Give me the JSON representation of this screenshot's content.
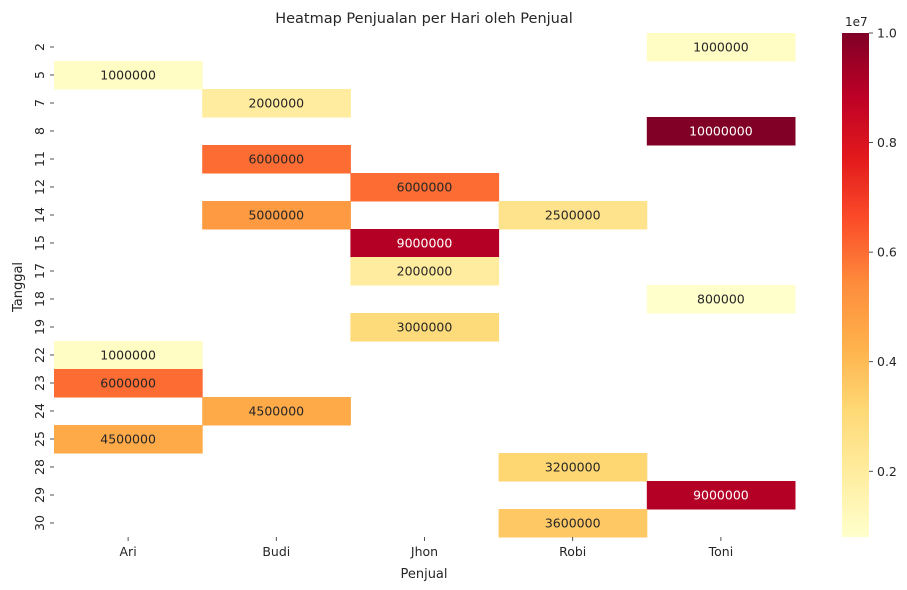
{
  "chart_data": {
    "type": "heatmap",
    "title": "Heatmap Penjualan per Hari oleh Penjual",
    "xlabel": "Penjual",
    "ylabel": "Tanggal",
    "x_categories": [
      "Ari",
      "Budi",
      "Jhon",
      "Robi",
      "Toni"
    ],
    "y_categories": [
      "2",
      "5",
      "7",
      "8",
      "11",
      "12",
      "14",
      "15",
      "17",
      "18",
      "19",
      "22",
      "23",
      "24",
      "25",
      "28",
      "29",
      "30"
    ],
    "cells": [
      {
        "x": "Toni",
        "y": "2",
        "value": 1000000,
        "label": "1000000"
      },
      {
        "x": "Ari",
        "y": "5",
        "value": 1000000,
        "label": "1000000"
      },
      {
        "x": "Budi",
        "y": "7",
        "value": 2000000,
        "label": "2000000"
      },
      {
        "x": "Toni",
        "y": "8",
        "value": 10000000,
        "label": "10000000"
      },
      {
        "x": "Budi",
        "y": "11",
        "value": 6000000,
        "label": "6000000"
      },
      {
        "x": "Jhon",
        "y": "12",
        "value": 6000000,
        "label": "6000000"
      },
      {
        "x": "Budi",
        "y": "14",
        "value": 5000000,
        "label": "5000000"
      },
      {
        "x": "Robi",
        "y": "14",
        "value": 2500000,
        "label": "2500000"
      },
      {
        "x": "Jhon",
        "y": "15",
        "value": 9000000,
        "label": "9000000"
      },
      {
        "x": "Jhon",
        "y": "17",
        "value": 2000000,
        "label": "2000000"
      },
      {
        "x": "Toni",
        "y": "18",
        "value": 800000,
        "label": "800000"
      },
      {
        "x": "Jhon",
        "y": "19",
        "value": 3000000,
        "label": "3000000"
      },
      {
        "x": "Ari",
        "y": "22",
        "value": 1000000,
        "label": "1000000"
      },
      {
        "x": "Ari",
        "y": "23",
        "value": 6000000,
        "label": "6000000"
      },
      {
        "x": "Budi",
        "y": "24",
        "value": 4500000,
        "label": "4500000"
      },
      {
        "x": "Ari",
        "y": "25",
        "value": 4500000,
        "label": "4500000"
      },
      {
        "x": "Robi",
        "y": "28",
        "value": 3200000,
        "label": "3200000"
      },
      {
        "x": "Toni",
        "y": "29",
        "value": 9000000,
        "label": "9000000"
      },
      {
        "x": "Robi",
        "y": "30",
        "value": 3600000,
        "label": "3600000"
      }
    ],
    "colorbar": {
      "colormap": "YlOrRd",
      "vmin": 800000,
      "vmax": 10000000,
      "ticks": [
        2000000,
        4000000,
        6000000,
        8000000,
        10000000
      ],
      "tick_labels": [
        "0.2",
        "0.4",
        "0.6",
        "0.8",
        "1.0"
      ],
      "multiplier_label": "1e7"
    },
    "grid": false
  }
}
